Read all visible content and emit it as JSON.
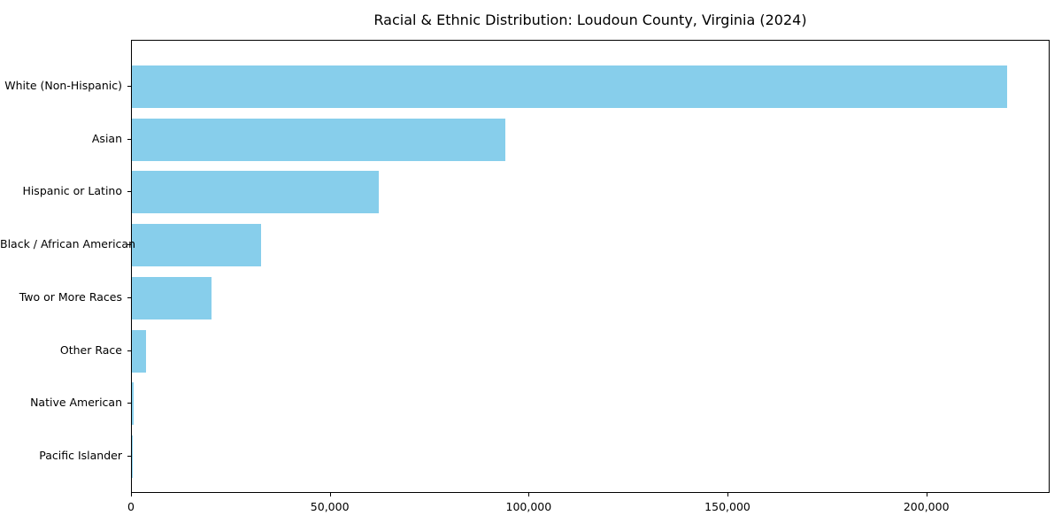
{
  "chart_data": {
    "type": "bar",
    "orientation": "horizontal",
    "title": "Racial & Ethnic Distribution: Loudoun County, Virginia (2024)",
    "categories": [
      "White (Non-Hispanic)",
      "Asian",
      "Hispanic or Latino",
      "Black / African American",
      "Two or More Races",
      "Other Race",
      "Native American",
      "Pacific Islander"
    ],
    "values": [
      220000,
      94000,
      62000,
      32500,
      20000,
      3500,
      400,
      150
    ],
    "xlabel": "",
    "ylabel": "",
    "xlim": [
      0,
      231000
    ],
    "x_ticks": [
      0,
      50000,
      100000,
      150000,
      200000
    ],
    "x_tick_labels": [
      "0",
      "50,000",
      "100,000",
      "150,000",
      "200,000"
    ],
    "bar_color": "#87CEEB",
    "text_color": "#000000",
    "spine_color": "#000000",
    "grid": false,
    "legend": null,
    "largest_bar_on_top": true
  }
}
